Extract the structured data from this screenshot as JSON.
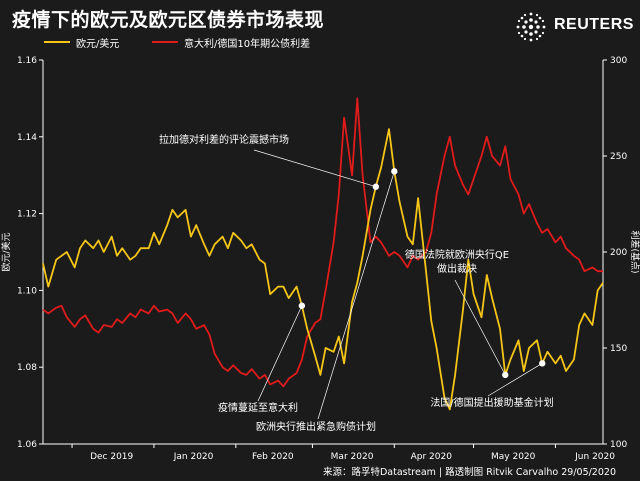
{
  "title": "疫情下的欧元及欧元区债券市场表现",
  "logo": {
    "text": "REUTERS"
  },
  "source": "来源：路孚特Datastream | 路透制图 Ritvik Carvalho 29/05/2020",
  "colors": {
    "background": "#1b1b1b",
    "eurusd": "#f5c518",
    "spread": "#e01b1b",
    "annotation": "#ffffff"
  },
  "chart_data": {
    "type": "line",
    "x_ticks": [
      "Dec 2019",
      "Jan 2020",
      "Feb 2020",
      "Mar 2020",
      "Apr 2020",
      "May 2020",
      "Jun 2020"
    ],
    "xlim": [
      "2019-11-20",
      "2020-06-19"
    ],
    "y_left": {
      "label": "欧元/美元",
      "lim": [
        1.06,
        1.16
      ],
      "ticks": [
        "1.06",
        "1.08",
        "1.10",
        "1.12",
        "1.14",
        "1.16"
      ]
    },
    "y_right": {
      "label": "利差(基点)",
      "lim": [
        100,
        300
      ],
      "ticks": [
        "100",
        "150",
        "200",
        "250",
        "300"
      ]
    },
    "grid": false,
    "legend_position": "top-left",
    "series": [
      {
        "name": "欧元/美元",
        "axis": "left",
        "points": [
          [
            "2019-11-20",
            1.107
          ],
          [
            "2019-11-22",
            1.101
          ],
          [
            "2019-11-25",
            1.108
          ],
          [
            "2019-11-27",
            1.109
          ],
          [
            "2019-11-29",
            1.11
          ],
          [
            "2019-12-02",
            1.106
          ],
          [
            "2019-12-04",
            1.111
          ],
          [
            "2019-12-06",
            1.113
          ],
          [
            "2019-12-09",
            1.111
          ],
          [
            "2019-12-11",
            1.113
          ],
          [
            "2019-12-13",
            1.11
          ],
          [
            "2019-12-16",
            1.114
          ],
          [
            "2019-12-18",
            1.109
          ],
          [
            "2019-12-20",
            1.111
          ],
          [
            "2019-12-23",
            1.108
          ],
          [
            "2019-12-25",
            1.109
          ],
          [
            "2019-12-27",
            1.111
          ],
          [
            "2019-12-30",
            1.111
          ],
          [
            "2020-01-01",
            1.115
          ],
          [
            "2020-01-03",
            1.112
          ],
          [
            "2020-01-06",
            1.117
          ],
          [
            "2020-01-08",
            1.121
          ],
          [
            "2020-01-10",
            1.119
          ],
          [
            "2020-01-13",
            1.121
          ],
          [
            "2020-01-15",
            1.114
          ],
          [
            "2020-01-17",
            1.117
          ],
          [
            "2020-01-20",
            1.112
          ],
          [
            "2020-01-22",
            1.109
          ],
          [
            "2020-01-24",
            1.112
          ],
          [
            "2020-01-27",
            1.114
          ],
          [
            "2020-01-29",
            1.111
          ],
          [
            "2020-01-31",
            1.115
          ],
          [
            "2020-02-03",
            1.113
          ],
          [
            "2020-02-05",
            1.111
          ],
          [
            "2020-02-07",
            1.112
          ],
          [
            "2020-02-10",
            1.108
          ],
          [
            "2020-02-12",
            1.107
          ],
          [
            "2020-02-14",
            1.099
          ],
          [
            "2020-02-17",
            1.101
          ],
          [
            "2020-02-19",
            1.101
          ],
          [
            "2020-02-21",
            1.098
          ],
          [
            "2020-02-24",
            1.101
          ],
          [
            "2020-02-26",
            1.096
          ],
          [
            "2020-02-28",
            1.09
          ],
          [
            "2020-03-02",
            1.083
          ],
          [
            "2020-03-04",
            1.078
          ],
          [
            "2020-03-06",
            1.085
          ],
          [
            "2020-03-09",
            1.084
          ],
          [
            "2020-03-11",
            1.088
          ],
          [
            "2020-03-13",
            1.081
          ],
          [
            "2020-03-16",
            1.097
          ],
          [
            "2020-03-18",
            1.102
          ],
          [
            "2020-03-20",
            1.109
          ],
          [
            "2020-03-23",
            1.121
          ],
          [
            "2020-03-25",
            1.127
          ],
          [
            "2020-03-27",
            1.132
          ],
          [
            "2020-03-30",
            1.142
          ],
          [
            "2020-04-01",
            1.131
          ],
          [
            "2020-04-03",
            1.123
          ],
          [
            "2020-04-06",
            1.114
          ],
          [
            "2020-04-08",
            1.112
          ],
          [
            "2020-04-10",
            1.124
          ],
          [
            "2020-04-13",
            1.105
          ],
          [
            "2020-04-15",
            1.092
          ],
          [
            "2020-04-17",
            1.085
          ],
          [
            "2020-04-20",
            1.072
          ],
          [
            "2020-04-22",
            1.069
          ],
          [
            "2020-04-24",
            1.078
          ],
          [
            "2020-04-27",
            1.095
          ],
          [
            "2020-04-29",
            1.108
          ],
          [
            "2020-05-01",
            1.099
          ],
          [
            "2020-05-04",
            1.093
          ],
          [
            "2020-05-06",
            1.104
          ],
          [
            "2020-05-08",
            1.098
          ],
          [
            "2020-05-11",
            1.09
          ],
          [
            "2020-05-13",
            1.078
          ],
          [
            "2020-05-15",
            1.082
          ],
          [
            "2020-05-18",
            1.087
          ],
          [
            "2020-05-20",
            1.079
          ],
          [
            "2020-05-22",
            1.085
          ],
          [
            "2020-05-25",
            1.087
          ],
          [
            "2020-05-27",
            1.081
          ],
          [
            "2020-05-29",
            1.084
          ],
          [
            "2020-06-01",
            1.081
          ],
          [
            "2020-06-03",
            1.083
          ],
          [
            "2020-06-05",
            1.079
          ],
          [
            "2020-06-08",
            1.082
          ],
          [
            "2020-06-10",
            1.091
          ],
          [
            "2020-06-12",
            1.094
          ],
          [
            "2020-06-15",
            1.091
          ],
          [
            "2020-06-17",
            1.1
          ],
          [
            "2020-06-19",
            1.102
          ]
        ]
      },
      {
        "name": "意大利/德国10年期公债利差",
        "axis": "right",
        "points": [
          [
            "2019-11-20",
            170
          ],
          [
            "2019-11-22",
            168
          ],
          [
            "2019-11-25",
            171
          ],
          [
            "2019-11-27",
            172
          ],
          [
            "2019-11-29",
            166
          ],
          [
            "2019-12-02",
            161
          ],
          [
            "2019-12-04",
            165
          ],
          [
            "2019-12-06",
            167
          ],
          [
            "2019-12-09",
            160
          ],
          [
            "2019-12-11",
            158
          ],
          [
            "2019-12-13",
            162
          ],
          [
            "2019-12-16",
            161
          ],
          [
            "2019-12-18",
            165
          ],
          [
            "2019-12-20",
            163
          ],
          [
            "2019-12-23",
            168
          ],
          [
            "2019-12-25",
            166
          ],
          [
            "2019-12-27",
            170
          ],
          [
            "2019-12-30",
            168
          ],
          [
            "2020-01-01",
            172
          ],
          [
            "2020-01-03",
            169
          ],
          [
            "2020-01-06",
            170
          ],
          [
            "2020-01-08",
            168
          ],
          [
            "2020-01-10",
            163
          ],
          [
            "2020-01-13",
            168
          ],
          [
            "2020-01-15",
            165
          ],
          [
            "2020-01-17",
            160
          ],
          [
            "2020-01-20",
            162
          ],
          [
            "2020-01-22",
            157
          ],
          [
            "2020-01-24",
            147
          ],
          [
            "2020-01-27",
            140
          ],
          [
            "2020-01-29",
            138
          ],
          [
            "2020-01-31",
            141
          ],
          [
            "2020-02-03",
            137
          ],
          [
            "2020-02-05",
            136
          ],
          [
            "2020-02-07",
            139
          ],
          [
            "2020-02-10",
            134
          ],
          [
            "2020-02-12",
            136
          ],
          [
            "2020-02-14",
            131
          ],
          [
            "2020-02-17",
            133
          ],
          [
            "2020-02-19",
            130
          ],
          [
            "2020-02-21",
            134
          ],
          [
            "2020-02-24",
            137
          ],
          [
            "2020-02-26",
            144
          ],
          [
            "2020-02-28",
            156
          ],
          [
            "2020-03-02",
            163
          ],
          [
            "2020-03-04",
            165
          ],
          [
            "2020-03-06",
            180
          ],
          [
            "2020-03-09",
            205
          ],
          [
            "2020-03-11",
            230
          ],
          [
            "2020-03-13",
            270
          ],
          [
            "2020-03-16",
            240
          ],
          [
            "2020-03-18",
            280
          ],
          [
            "2020-03-20",
            240
          ],
          [
            "2020-03-23",
            205
          ],
          [
            "2020-03-25",
            208
          ],
          [
            "2020-03-27",
            205
          ],
          [
            "2020-03-30",
            198
          ],
          [
            "2020-04-01",
            200
          ],
          [
            "2020-04-03",
            198
          ],
          [
            "2020-04-06",
            192
          ],
          [
            "2020-04-08",
            198
          ],
          [
            "2020-04-10",
            196
          ],
          [
            "2020-04-13",
            200
          ],
          [
            "2020-04-15",
            210
          ],
          [
            "2020-04-17",
            230
          ],
          [
            "2020-04-20",
            250
          ],
          [
            "2020-04-22",
            260
          ],
          [
            "2020-04-24",
            245
          ],
          [
            "2020-04-27",
            235
          ],
          [
            "2020-04-29",
            230
          ],
          [
            "2020-05-01",
            238
          ],
          [
            "2020-05-04",
            250
          ],
          [
            "2020-05-06",
            260
          ],
          [
            "2020-05-08",
            250
          ],
          [
            "2020-05-11",
            245
          ],
          [
            "2020-05-13",
            255
          ],
          [
            "2020-05-15",
            238
          ],
          [
            "2020-05-18",
            230
          ],
          [
            "2020-05-20",
            220
          ],
          [
            "2020-05-22",
            225
          ],
          [
            "2020-05-25",
            215
          ],
          [
            "2020-05-27",
            210
          ],
          [
            "2020-05-29",
            212
          ],
          [
            "2020-06-01",
            205
          ],
          [
            "2020-06-03",
            208
          ],
          [
            "2020-06-05",
            202
          ],
          [
            "2020-06-08",
            198
          ],
          [
            "2020-06-10",
            196
          ],
          [
            "2020-06-12",
            190
          ],
          [
            "2020-06-15",
            192
          ],
          [
            "2020-06-17",
            190
          ],
          [
            "2020-06-19",
            190
          ]
        ]
      }
    ],
    "annotations": [
      {
        "id": "distortion",
        "lines": [
          "拉加德对利差的评论震撼市场"
        ],
        "date": "2020-03-25",
        "value": 1.127,
        "axis": "left"
      },
      {
        "id": "spread",
        "lines": [
          "疫情蔓延至意大利"
        ],
        "date": "2020-02-26",
        "value": 1.096,
        "axis": "left"
      },
      {
        "id": "purchase",
        "lines": [
          "欧洲央行推出紧急购债计划"
        ],
        "date": "2020-04-01",
        "value": 1.131,
        "axis": "left"
      },
      {
        "id": "court",
        "lines": [
          "德国法院就欧洲央行QE",
          "做出裁决"
        ],
        "date": "2020-05-13",
        "value": 1.078,
        "axis": "left"
      },
      {
        "id": "fund",
        "lines": [
          "法国/德国提出援助基金计划"
        ],
        "date": "2020-05-27",
        "value": 1.081,
        "axis": "left"
      }
    ]
  }
}
